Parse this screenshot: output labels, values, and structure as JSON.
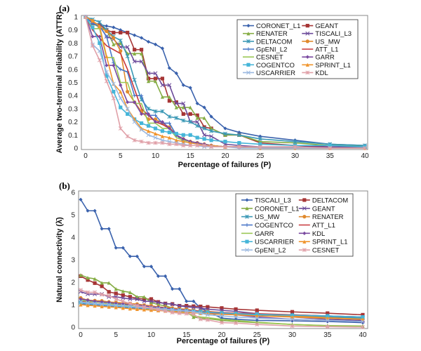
{
  "chart_data": [
    {
      "type": "line",
      "panel_label": "(a)",
      "xlabel": "Percentage of failures (P)",
      "ylabel": "Average two-terminal reliability (ATTR)",
      "xlim": [
        0,
        40
      ],
      "ylim": [
        0,
        1
      ],
      "xticks": [
        0,
        5,
        10,
        15,
        20,
        25,
        30,
        35,
        40
      ],
      "yticks": [
        0,
        0.1,
        0.2,
        0.3,
        0.4,
        0.5,
        0.6,
        0.7,
        0.8,
        0.9,
        1
      ],
      "grid": false,
      "legend": "top-right",
      "x": [
        0,
        1,
        2,
        3,
        4,
        5,
        6,
        7,
        8,
        9,
        10,
        11,
        12,
        13,
        14,
        15,
        16,
        17,
        18,
        20,
        22,
        25,
        30,
        35,
        40
      ],
      "series": [
        {
          "name": "CORONET_L1",
          "color": "#3a62ad",
          "marker": "diamond",
          "values": [
            1,
            0.96,
            0.94,
            0.93,
            0.92,
            0.9,
            0.88,
            0.86,
            0.84,
            0.81,
            0.79,
            0.76,
            0.61,
            0.57,
            0.48,
            0.46,
            0.34,
            0.31,
            0.24,
            0.15,
            0.12,
            0.09,
            0.06,
            0.03,
            0.02
          ]
        },
        {
          "name": "GEANT",
          "color": "#a63535",
          "marker": "square",
          "values": [
            1,
            0.95,
            0.94,
            0.9,
            0.88,
            0.88,
            0.88,
            0.75,
            0.75,
            0.53,
            0.53,
            0.53,
            0.36,
            0.35,
            0.26,
            0.26,
            0.25,
            0.16,
            0.15,
            0.1,
            0.1,
            0.04,
            0.02,
            0.01,
            0.01
          ]
        },
        {
          "name": "RENATER",
          "color": "#86ad45",
          "marker": "triangle",
          "values": [
            1,
            0.95,
            0.92,
            0.9,
            0.79,
            0.8,
            0.72,
            0.72,
            0.72,
            0.51,
            0.51,
            0.39,
            0.39,
            0.31,
            0.31,
            0.31,
            0.23,
            0.23,
            0.15,
            0.1,
            0.1,
            0.05,
            0.04,
            0.02,
            0.02
          ]
        },
        {
          "name": "TISCALI_L3",
          "color": "#6b4a9a",
          "marker": "x",
          "values": [
            1,
            0.95,
            0.93,
            0.85,
            0.83,
            0.77,
            0.77,
            0.66,
            0.66,
            0.57,
            0.57,
            0.48,
            0.48,
            0.34,
            0.34,
            0.2,
            0.2,
            0.1,
            0.09,
            0.03,
            0.02,
            0.01,
            0.01,
            0.01,
            0.01
          ]
        },
        {
          "name": "DELTACOM",
          "color": "#3a98b5",
          "marker": "star",
          "values": [
            1,
            0.98,
            0.96,
            0.9,
            0.85,
            0.82,
            0.7,
            0.52,
            0.37,
            0.3,
            0.28,
            0.28,
            0.24,
            0.23,
            0.21,
            0.2,
            0.17,
            0.15,
            0.13,
            0.11,
            0.1,
            0.07,
            0.05,
            0.03,
            0.02
          ]
        },
        {
          "name": "US_MW",
          "color": "#e08a2e",
          "marker": "circle",
          "values": [
            1,
            0.97,
            0.92,
            0.89,
            0.84,
            0.74,
            0.43,
            0.35,
            0.28,
            0.22,
            0.22,
            0.19,
            0.16,
            0.1,
            0.07,
            0.05,
            0.04,
            0.03,
            0.02,
            0.01,
            0.01,
            0,
            0,
            0,
            0
          ]
        },
        {
          "name": "GpENI_L2",
          "color": "#4a78c8",
          "marker": "plus",
          "values": [
            1,
            0.95,
            0.93,
            0.85,
            0.65,
            0.6,
            0.58,
            0.4,
            0.4,
            0.25,
            0.25,
            0.19,
            0.19,
            0.1,
            0.05,
            0.04,
            0.03,
            0.02,
            0.02,
            0.01,
            0.01,
            0,
            0,
            0,
            0
          ]
        },
        {
          "name": "ATT_L1",
          "color": "#c8373a",
          "marker": "none",
          "values": [
            1,
            0.9,
            0.84,
            0.78,
            0.75,
            0.72,
            0.6,
            0.45,
            0.3,
            0.25,
            0.2,
            0.18,
            0.15,
            0.1,
            0.07,
            0.05,
            0.04,
            0.03,
            0.02,
            0.01,
            0.01,
            0,
            0,
            0,
            0
          ]
        },
        {
          "name": "CESNET",
          "color": "#9bc855",
          "marker": "none",
          "values": [
            1,
            0.91,
            0.91,
            0.69,
            0.69,
            0.5,
            0.5,
            0.34,
            0.34,
            0.19,
            0.19,
            0.15,
            0.15,
            0.08,
            0.06,
            0.05,
            0.04,
            0.03,
            0.02,
            0.01,
            0.01,
            0,
            0,
            0,
            0
          ]
        },
        {
          "name": "GARR",
          "color": "#7a4aa0",
          "marker": "diamond",
          "values": [
            1,
            0.85,
            0.85,
            0.63,
            0.63,
            0.48,
            0.35,
            0.35,
            0.26,
            0.26,
            0.2,
            0.2,
            0.15,
            0.1,
            0.07,
            0.05,
            0.04,
            0.03,
            0.02,
            0.01,
            0.01,
            0,
            0,
            0,
            0
          ]
        },
        {
          "name": "COGENTCO",
          "color": "#45b5d8",
          "marker": "square",
          "values": [
            1,
            0.92,
            0.8,
            0.55,
            0.43,
            0.31,
            0.26,
            0.22,
            0.19,
            0.17,
            0.15,
            0.13,
            0.12,
            0.11,
            0.1,
            0.1,
            0.08,
            0.07,
            0.06,
            0.05,
            0.04,
            0.03,
            0.02,
            0.02,
            0.01
          ]
        },
        {
          "name": "SPRINT_L1",
          "color": "#f0952e",
          "marker": "triangle",
          "values": [
            1,
            0.97,
            0.93,
            0.7,
            0.49,
            0.43,
            0.3,
            0.22,
            0.15,
            0.13,
            0.11,
            0.09,
            0.08,
            0.06,
            0.05,
            0.04,
            0.03,
            0.02,
            0.02,
            0.01,
            0.01,
            0,
            0,
            0,
            0
          ]
        },
        {
          "name": "USCARRIER",
          "color": "#9ab8e0",
          "marker": "x",
          "values": [
            1,
            0.79,
            0.74,
            0.58,
            0.49,
            0.38,
            0.3,
            0.2,
            0.14,
            0.1,
            0.08,
            0.06,
            0.05,
            0.04,
            0.03,
            0.02,
            0.02,
            0.01,
            0.01,
            0.01,
            0,
            0,
            0,
            0,
            0
          ]
        },
        {
          "name": "KDL",
          "color": "#e0a0a8",
          "marker": "star",
          "values": [
            1,
            0.78,
            0.67,
            0.51,
            0.38,
            0.15,
            0.09,
            0.06,
            0.05,
            0.04,
            0.04,
            0.04,
            0.03,
            0.03,
            0.02,
            0.02,
            0.02,
            0.02,
            0.01,
            0.01,
            0.01,
            0.01,
            0.01,
            0,
            0
          ]
        }
      ]
    },
    {
      "type": "line",
      "panel_label": "(b)",
      "xlabel": "Percentage of failures (P)",
      "ylabel": "Natural connectivity (λ̄)",
      "xlim": [
        0,
        40
      ],
      "ylim": [
        0,
        6
      ],
      "xticks": [
        0,
        5,
        10,
        15,
        20,
        25,
        30,
        35,
        40
      ],
      "yticks": [
        0,
        1,
        2,
        3,
        4,
        5,
        6
      ],
      "grid": false,
      "legend": "top-right",
      "x": [
        0,
        1,
        2,
        3,
        4,
        5,
        6,
        7,
        8,
        9,
        10,
        11,
        12,
        13,
        14,
        15,
        16,
        17,
        18,
        20,
        22,
        25,
        30,
        35,
        40
      ],
      "series": [
        {
          "name": "TISCALI_L3",
          "color": "#3a62ad",
          "marker": "diamond",
          "values": [
            5.68,
            5.18,
            5.18,
            4.38,
            4.38,
            3.53,
            3.53,
            3.15,
            3.15,
            2.7,
            2.7,
            2.27,
            2.27,
            1.7,
            1.7,
            1.15,
            1.15,
            0.85,
            0.7,
            0.4,
            0.35,
            0.3,
            0.28,
            0.25,
            0.2
          ]
        },
        {
          "name": "DELTACOM",
          "color": "#a63535",
          "marker": "square",
          "values": [
            2.27,
            2.1,
            1.96,
            1.82,
            1.57,
            1.5,
            1.42,
            1.35,
            1.28,
            1.25,
            1.25,
            1.12,
            1.05,
            1.03,
            0.95,
            0.95,
            0.93,
            0.92,
            0.9,
            0.85,
            0.8,
            0.75,
            0.68,
            0.62,
            0.55
          ]
        },
        {
          "name": "CORONET_L1",
          "color": "#86ad45",
          "marker": "triangle",
          "values": [
            2.32,
            2.2,
            2.15,
            1.97,
            1.97,
            1.7,
            1.6,
            1.55,
            1.35,
            1.35,
            1.1,
            1,
            0.95,
            0.85,
            0.8,
            0.7,
            0.45,
            0.4,
            0.38,
            0.3,
            0.25,
            0.2,
            0.12,
            0.07,
            0.05
          ]
        },
        {
          "name": "GEANT",
          "color": "#6b4a9a",
          "marker": "x",
          "values": [
            1.58,
            1.47,
            1.47,
            1.47,
            1.35,
            1.35,
            1.3,
            1.25,
            1.25,
            1.15,
            1.15,
            1.1,
            1.05,
            1.02,
            0.95,
            0.9,
            0.88,
            0.85,
            0.8,
            0.75,
            0.7,
            0.6,
            0.45,
            0.35,
            0.3
          ]
        },
        {
          "name": "US_MW",
          "color": "#3a98b5",
          "marker": "star",
          "values": [
            1.1,
            1.05,
            1.02,
            1,
            0.98,
            0.95,
            0.93,
            0.9,
            0.88,
            0.85,
            0.82,
            0.8,
            0.78,
            0.75,
            0.73,
            0.7,
            0.68,
            0.66,
            0.64,
            0.6,
            0.58,
            0.55,
            0.5,
            0.45,
            0.4
          ]
        },
        {
          "name": "RENATER",
          "color": "#e08a2e",
          "marker": "circle",
          "values": [
            1.3,
            1.2,
            1.18,
            1.17,
            1.12,
            1.1,
            1.08,
            1.05,
            1.03,
            0.98,
            0.95,
            0.9,
            0.88,
            0.85,
            0.82,
            0.8,
            0.75,
            0.72,
            0.7,
            0.65,
            0.62,
            0.58,
            0.5,
            0.42,
            0.35
          ]
        },
        {
          "name": "COGENTCO",
          "color": "#4a78c8",
          "marker": "plus",
          "values": [
            1.05,
            1,
            0.98,
            0.95,
            0.93,
            0.9,
            0.88,
            0.86,
            0.84,
            0.82,
            0.8,
            0.78,
            0.76,
            0.74,
            0.72,
            0.7,
            0.68,
            0.66,
            0.65,
            0.62,
            0.6,
            0.58,
            0.55,
            0.5,
            0.45
          ]
        },
        {
          "name": "ATT_L1",
          "color": "#c8373a",
          "marker": "none",
          "values": [
            1.15,
            1.1,
            1.05,
            1.03,
            1,
            0.98,
            0.95,
            0.92,
            0.9,
            0.88,
            0.85,
            0.82,
            0.8,
            0.78,
            0.76,
            0.74,
            0.72,
            0.7,
            0.68,
            0.65,
            0.62,
            0.6,
            0.55,
            0.5,
            0.45
          ]
        },
        {
          "name": "GARR",
          "color": "#9bc855",
          "marker": "none",
          "values": [
            1.2,
            1.15,
            1.12,
            1.1,
            1.05,
            1.02,
            1,
            0.95,
            0.9,
            0.85,
            0.8,
            0.78,
            0.75,
            0.7,
            0.66,
            0.62,
            0.5,
            0.45,
            0.42,
            0.35,
            0.3,
            0.22,
            0.12,
            0.06,
            0.04
          ]
        },
        {
          "name": "KDL",
          "color": "#7a4aa0",
          "marker": "diamond",
          "values": [
            1.25,
            1.2,
            1.15,
            1.12,
            1.1,
            1.05,
            1.03,
            1,
            0.98,
            0.95,
            0.9,
            0.88,
            0.85,
            0.8,
            0.78,
            0.75,
            0.72,
            0.7,
            0.65,
            0.6,
            0.55,
            0.45,
            0.35,
            0.3,
            0.25
          ]
        },
        {
          "name": "USCARRIER",
          "color": "#45b5d8",
          "marker": "square",
          "values": [
            1.1,
            1.05,
            1.03,
            1,
            0.98,
            0.95,
            0.92,
            0.9,
            0.88,
            0.85,
            0.83,
            0.8,
            0.78,
            0.76,
            0.74,
            0.72,
            0.7,
            0.68,
            0.66,
            0.63,
            0.6,
            0.57,
            0.53,
            0.5,
            0.45
          ]
        },
        {
          "name": "SPRINT_L1",
          "color": "#f0952e",
          "marker": "triangle",
          "values": [
            1,
            0.97,
            0.95,
            0.92,
            0.9,
            0.88,
            0.85,
            0.82,
            0.8,
            0.78,
            0.76,
            0.74,
            0.72,
            0.7,
            0.68,
            0.66,
            0.64,
            0.62,
            0.6,
            0.57,
            0.55,
            0.5,
            0.45,
            0.4,
            0.35
          ]
        },
        {
          "name": "GpENI_L2",
          "color": "#9ab8e0",
          "marker": "x",
          "values": [
            1.12,
            1.08,
            1.05,
            1.02,
            1,
            0.97,
            0.95,
            0.92,
            0.9,
            0.87,
            0.85,
            0.82,
            0.8,
            0.77,
            0.75,
            0.72,
            0.68,
            0.62,
            0.55,
            0.5,
            0.45,
            0.4,
            0.35,
            0.3,
            0.25
          ]
        },
        {
          "name": "CESNET",
          "color": "#e0a0a8",
          "marker": "star",
          "values": [
            1.65,
            1.55,
            1.55,
            1.45,
            1.4,
            1.25,
            1.15,
            1.05,
            0.95,
            0.9,
            0.85,
            0.78,
            0.72,
            0.65,
            0.62,
            0.6,
            0.58,
            0.35,
            0.32,
            0.2,
            0.18,
            0.12,
            0.05,
            0.02,
            0
          ]
        }
      ]
    }
  ]
}
